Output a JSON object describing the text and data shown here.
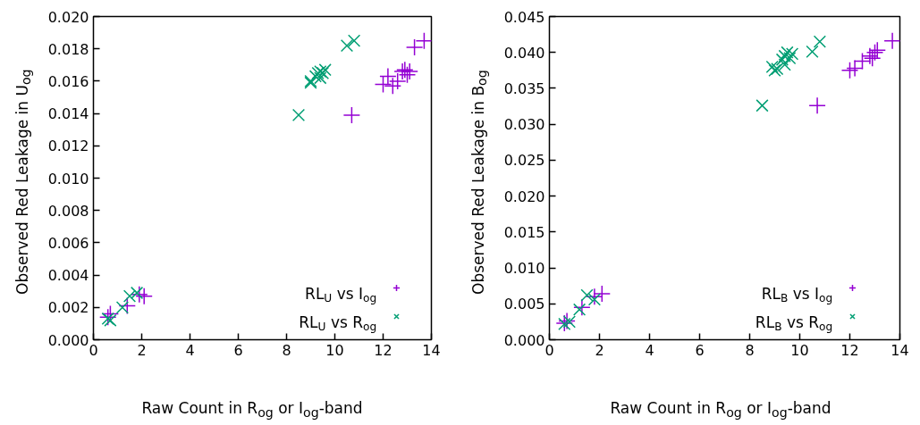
{
  "chart_data": [
    {
      "type": "scatter",
      "xlabel": "Raw Count in R$_{og}$ or I$_{og}$-band",
      "ylabel": "Observed Red Leakage in U$_{og}$",
      "xlim": [
        0,
        14
      ],
      "ylim": [
        0,
        0.02
      ],
      "xticks": [
        0,
        2,
        4,
        6,
        8,
        10,
        12,
        14
      ],
      "yticks": [
        {
          "value": 0,
          "label": "0.000"
        },
        {
          "value": 0.002,
          "label": "0.002"
        },
        {
          "value": 0.004,
          "label": "0.004"
        },
        {
          "value": 0.006,
          "label": "0.006"
        },
        {
          "value": 0.008,
          "label": "0.008"
        },
        {
          "value": 0.01,
          "label": "0.010"
        },
        {
          "value": 0.012,
          "label": "0.012"
        },
        {
          "value": 0.014,
          "label": "0.014"
        },
        {
          "value": 0.016,
          "label": "0.016"
        },
        {
          "value": 0.018,
          "label": "0.018"
        },
        {
          "value": 0.02,
          "label": "0.020"
        }
      ],
      "legend": "bottom right",
      "series": [
        {
          "name": "RL$_{U}$ vs I$_{og}$",
          "color": "#9400d3",
          "marker": "cross",
          "x": [
            10.7,
            12.0,
            12.2,
            12.4,
            12.6,
            12.8,
            12.9,
            13.0,
            13.1,
            13.3,
            13.7,
            0.6,
            0.7,
            1.4,
            1.9,
            2.1
          ],
          "values": [
            0.0139,
            0.0158,
            0.0163,
            0.0157,
            0.016,
            0.0166,
            0.0167,
            0.0164,
            0.0166,
            0.0181,
            0.0185,
            0.0014,
            0.0016,
            0.0021,
            0.0028,
            0.0027
          ]
        },
        {
          "name": "RL$_{U}$ vs R$_{og}$",
          "color": "#009e73",
          "marker": "x",
          "x": [
            8.5,
            9.0,
            9.0,
            9.2,
            9.3,
            9.4,
            9.5,
            9.6,
            9.4,
            10.5,
            10.8,
            0.6,
            0.7,
            1.2,
            1.5,
            1.8
          ],
          "values": [
            0.0139,
            0.0159,
            0.016,
            0.0163,
            0.0165,
            0.0166,
            0.0165,
            0.0167,
            0.0162,
            0.0182,
            0.0185,
            0.0013,
            0.0012,
            0.002,
            0.0027,
            0.0029
          ]
        }
      ]
    },
    {
      "type": "scatter",
      "xlabel": "Raw Count in R$_{og}$ or I$_{og}$-band",
      "ylabel": "Observed Red Leakage in B$_{og}$",
      "xlim": [
        0,
        14
      ],
      "ylim": [
        0,
        0.045
      ],
      "xticks": [
        0,
        2,
        4,
        6,
        8,
        10,
        12,
        14
      ],
      "yticks": [
        {
          "value": 0,
          "label": "0.000"
        },
        {
          "value": 0.005,
          "label": "0.005"
        },
        {
          "value": 0.01,
          "label": "0.010"
        },
        {
          "value": 0.015,
          "label": "0.015"
        },
        {
          "value": 0.02,
          "label": "0.020"
        },
        {
          "value": 0.025,
          "label": "0.025"
        },
        {
          "value": 0.03,
          "label": "0.030"
        },
        {
          "value": 0.035,
          "label": "0.035"
        },
        {
          "value": 0.04,
          "label": "0.040"
        },
        {
          "value": 0.045,
          "label": "0.045"
        }
      ],
      "legend": "bottom right",
      "series": [
        {
          "name": "RL$_{B}$ vs I$_{og}$",
          "color": "#9400d3",
          "marker": "cross",
          "x": [
            10.7,
            12.0,
            12.2,
            12.5,
            12.8,
            13.0,
            12.9,
            13.1,
            13.7,
            0.6,
            0.7,
            1.3,
            1.8,
            2.1
          ],
          "values": [
            0.0326,
            0.0375,
            0.0378,
            0.0388,
            0.0395,
            0.04,
            0.0392,
            0.0403,
            0.0416,
            0.0023,
            0.0026,
            0.0045,
            0.006,
            0.0064
          ]
        },
        {
          "name": "RL$_{B}$ vs R$_{og}$",
          "color": "#009e73",
          "marker": "x",
          "x": [
            8.5,
            8.9,
            9.0,
            9.1,
            9.3,
            9.4,
            9.5,
            9.6,
            9.7,
            9.4,
            10.5,
            10.8,
            0.6,
            0.8,
            1.2,
            1.5,
            1.8
          ],
          "values": [
            0.0326,
            0.038,
            0.0375,
            0.0377,
            0.039,
            0.0395,
            0.04,
            0.0392,
            0.0398,
            0.0383,
            0.0401,
            0.0415,
            0.0022,
            0.0025,
            0.0042,
            0.0062,
            0.0056
          ]
        }
      ]
    }
  ]
}
